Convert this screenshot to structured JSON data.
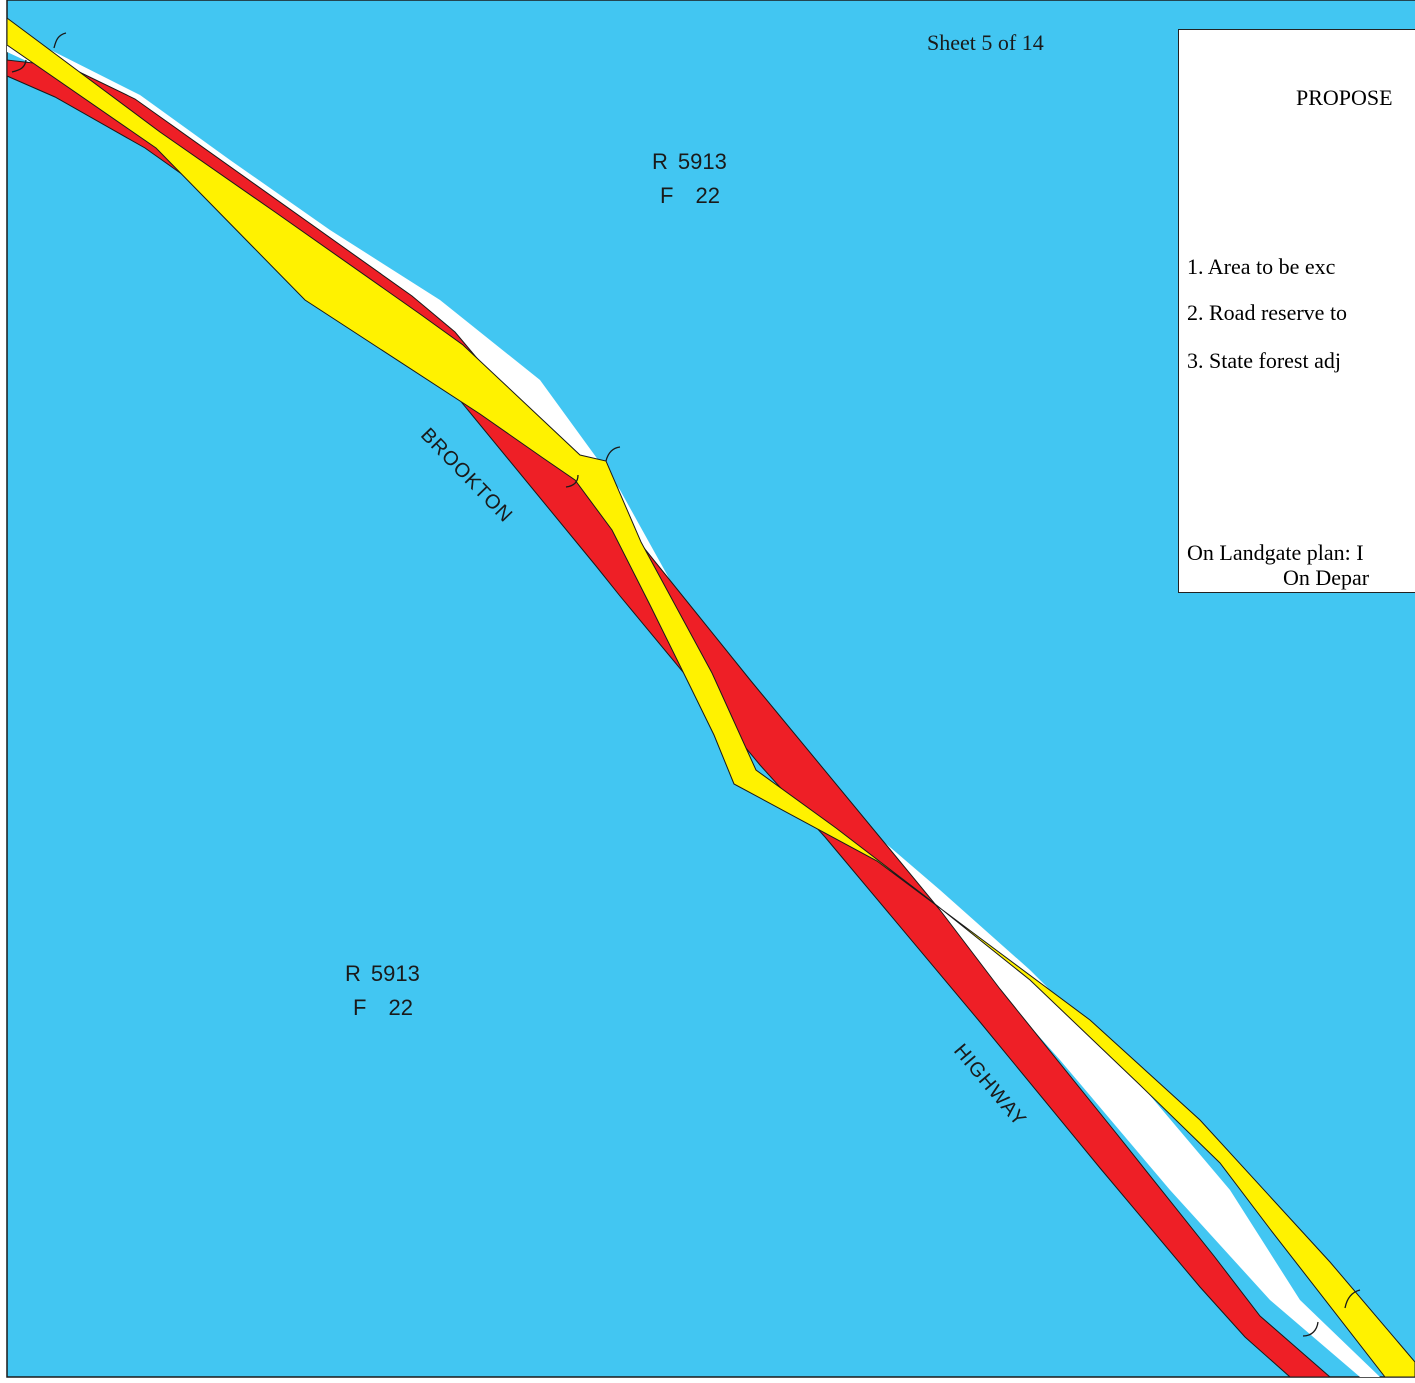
{
  "map": {
    "sheet_label": "Sheet 5 of 14",
    "road_name_1": "BROOKTON",
    "road_name_2": "HIGHWAY",
    "colors": {
      "state_forest": "#42c6f2",
      "excised_area": "#ee1f26",
      "road_reserve": "#fff200",
      "existing_road": "#ffffff",
      "outline": "#1a1a1a"
    },
    "reserve_upper": {
      "r_prefix": "R",
      "r_number": "5913",
      "f_prefix": "F",
      "f_number": "22"
    },
    "reserve_lower": {
      "r_prefix": "R",
      "r_number": "5913",
      "f_prefix": "F",
      "f_number": "22"
    }
  },
  "legend": {
    "title": "PROPOSE",
    "item_1": "1.  Area to be exc",
    "item_2": "2.  Road reserve to",
    "item_3": "3.  State forest adj",
    "footer_1": "On Landgate plan: I",
    "footer_2": "On Depar"
  }
}
